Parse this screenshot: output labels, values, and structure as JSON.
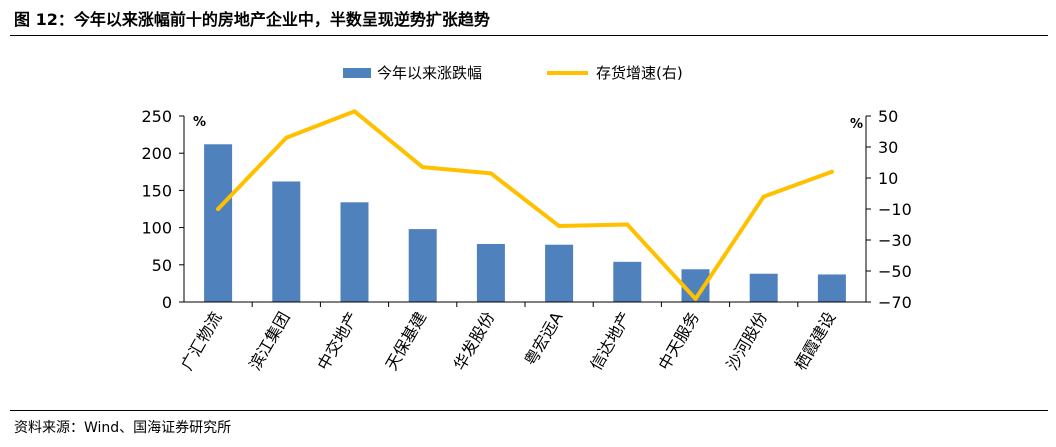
{
  "figure": {
    "title": "图 12：今年以来涨幅前十的房地产企业中，半数呈现逆势扩张趋势",
    "source": "资料来源：Wind、国海证券研究所"
  },
  "chart_data": {
    "type": "bar",
    "categories": [
      "广汇物流",
      "滨江集团",
      "中交地产",
      "天保基建",
      "华发股份",
      "粤宏远A",
      "信达地产",
      "中天服务",
      "沙河股份",
      "栖霞建设"
    ],
    "series": [
      {
        "name": "今年以来涨跌幅",
        "type": "bar",
        "axis": "left",
        "color": "#4f81bd",
        "values": [
          212,
          162,
          134,
          98,
          78,
          77,
          54,
          44,
          38,
          37
        ]
      },
      {
        "name": "存货增速(右)",
        "type": "line",
        "axis": "right",
        "color": "#ffc000",
        "values": [
          -10,
          36,
          53,
          17,
          13,
          -21,
          -20,
          -68,
          -2,
          14
        ]
      }
    ],
    "y_left": {
      "unit": "%",
      "ylim": [
        0,
        250
      ],
      "ticks": [
        "0",
        "50",
        "100",
        "150",
        "200",
        "250"
      ]
    },
    "y_right": {
      "unit": "%",
      "ylim": [
        -70,
        50
      ],
      "ticks": [
        "−70",
        "−50",
        "−30",
        "−10",
        "10",
        "30",
        "50"
      ]
    },
    "legend": "top",
    "grid": false
  }
}
